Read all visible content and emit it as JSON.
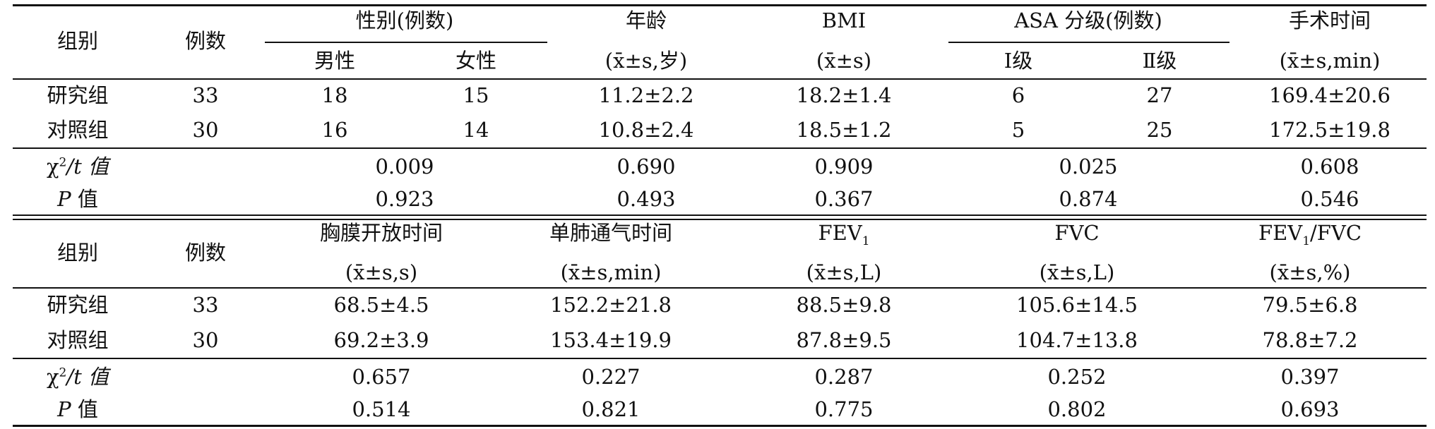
{
  "table1": {
    "header": {
      "group": "组别",
      "count": "例数",
      "sex": "性别(例数)",
      "male": "男性",
      "female": "女性",
      "age": "年龄",
      "age_unit": "(x̄±s,岁)",
      "bmi": "BMI",
      "bmi_unit": "(x̄±s)",
      "asa": "ASA 分级(例数)",
      "asa1": "Ⅰ级",
      "asa2": "Ⅱ级",
      "optime": "手术时间",
      "optime_unit": "(x̄±s,min)"
    },
    "rows": [
      {
        "group": "研究组",
        "n": "33",
        "male": "18",
        "female": "15",
        "age": "11.2±2.2",
        "bmi": "18.2±1.4",
        "asa1": "6",
        "asa2": "27",
        "optime": "169.4±20.6"
      },
      {
        "group": "对照组",
        "n": "30",
        "male": "16",
        "female": "14",
        "age": "10.8±2.4",
        "bmi": "18.5±1.2",
        "asa1": "5",
        "asa2": "25",
        "optime": "172.5±19.8"
      }
    ],
    "stat": {
      "label_chi": "χ",
      "label_sup": "2",
      "label_t": "/t 值",
      "sex": "0.009",
      "age": "0.690",
      "bmi": "0.909",
      "asa": "0.025",
      "optime": "0.608"
    },
    "p": {
      "label_p": "P",
      "label_val": " 值",
      "sex": "0.923",
      "age": "0.493",
      "bmi": "0.367",
      "asa": "0.874",
      "optime": "0.546"
    }
  },
  "table2": {
    "header": {
      "group": "组别",
      "count": "例数",
      "pleura": "胸膜开放时间",
      "pleura_unit": "(x̄±s,s)",
      "olv": "单肺通气时间",
      "olv_unit": "(x̄±s,min)",
      "fev_main": "FEV",
      "fev_sub": "1",
      "fev_unit": "(x̄±s,L)",
      "fvc": "FVC",
      "fvc_unit": "(x̄±s,L)",
      "ratio_main": "FEV",
      "ratio_sub": "1",
      "ratio_tail": "/FVC",
      "ratio_unit": "(x̄±s,%)"
    },
    "rows": [
      {
        "group": "研究组",
        "n": "33",
        "pleura": "68.5±4.5",
        "olv": "152.2±21.8",
        "fev": "88.5±9.8",
        "fvc": "105.6±14.5",
        "ratio": "79.5±6.8"
      },
      {
        "group": "对照组",
        "n": "30",
        "pleura": "69.2±3.9",
        "olv": "153.4±19.9",
        "fev": "87.8±9.5",
        "fvc": "104.7±13.8",
        "ratio": "78.8±7.2"
      }
    ],
    "stat": {
      "pleura": "0.657",
      "olv": "0.227",
      "fev": "0.287",
      "fvc": "0.252",
      "ratio": "0.397"
    },
    "p": {
      "pleura": "0.514",
      "olv": "0.821",
      "fev": "0.775",
      "fvc": "0.802",
      "ratio": "0.693"
    }
  }
}
